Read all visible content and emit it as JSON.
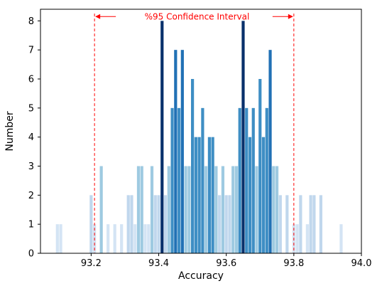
{
  "chart_data": {
    "type": "bar",
    "title": "",
    "xlabel": "Accuracy",
    "ylabel": "Number",
    "xlim": [
      93.05,
      94.0
    ],
    "ylim": [
      0,
      8.4
    ],
    "xticks": [
      93.2,
      93.4,
      93.6,
      93.8,
      94.0
    ],
    "xtick_labels": [
      "93.2",
      "93.4",
      "93.6",
      "93.8",
      "94.0"
    ],
    "yticks": [
      0,
      1,
      2,
      3,
      4,
      5,
      6,
      7,
      8
    ],
    "ytick_labels": [
      "0",
      "1",
      "2",
      "3",
      "4",
      "5",
      "6",
      "7",
      "8"
    ],
    "grid": false,
    "colors": {
      "frequency_1": "#d4e4f4",
      "frequency_2": "#c0d7ed",
      "frequency_3": "#9ecae1",
      "frequency_4_6": "#3e8ec4",
      "frequency_7": "#2171b5",
      "frequency_8": "#08306b",
      "interval": "#ff0000"
    },
    "x": [
      93.1,
      93.11,
      93.2,
      93.21,
      93.23,
      93.25,
      93.27,
      93.29,
      93.31,
      93.32,
      93.33,
      93.34,
      93.35,
      93.36,
      93.37,
      93.38,
      93.39,
      93.4,
      93.41,
      93.42,
      93.43,
      93.44,
      93.45,
      93.46,
      93.47,
      93.48,
      93.49,
      93.5,
      93.51,
      93.52,
      93.53,
      93.54,
      93.55,
      93.56,
      93.57,
      93.58,
      93.59,
      93.6,
      93.61,
      93.62,
      93.63,
      93.64,
      93.65,
      93.66,
      93.67,
      93.68,
      93.69,
      93.7,
      93.71,
      93.72,
      93.73,
      93.74,
      93.75,
      93.76,
      93.78,
      93.8,
      93.81,
      93.82,
      93.84,
      93.85,
      93.86,
      93.88,
      93.94
    ],
    "values": [
      1,
      1,
      2,
      1,
      3,
      1,
      1,
      1,
      2,
      2,
      1,
      3,
      3,
      1,
      1,
      3,
      2,
      2,
      8,
      2,
      3,
      5,
      7,
      5,
      7,
      3,
      3,
      6,
      4,
      4,
      5,
      3,
      4,
      4,
      3,
      2,
      3,
      2,
      2,
      3,
      3,
      5,
      8,
      5,
      4,
      5,
      3,
      6,
      4,
      5,
      7,
      3,
      3,
      2,
      2,
      1,
      1,
      2,
      1,
      2,
      2,
      2,
      1
    ],
    "annotations": [
      {
        "type": "vline",
        "x": 93.21,
        "style": "dashed"
      },
      {
        "type": "vline",
        "x": 93.8,
        "style": "dashed"
      },
      {
        "type": "text",
        "text": "%95 Confidence Interval",
        "x": 93.5,
        "y": 8.15
      }
    ]
  }
}
